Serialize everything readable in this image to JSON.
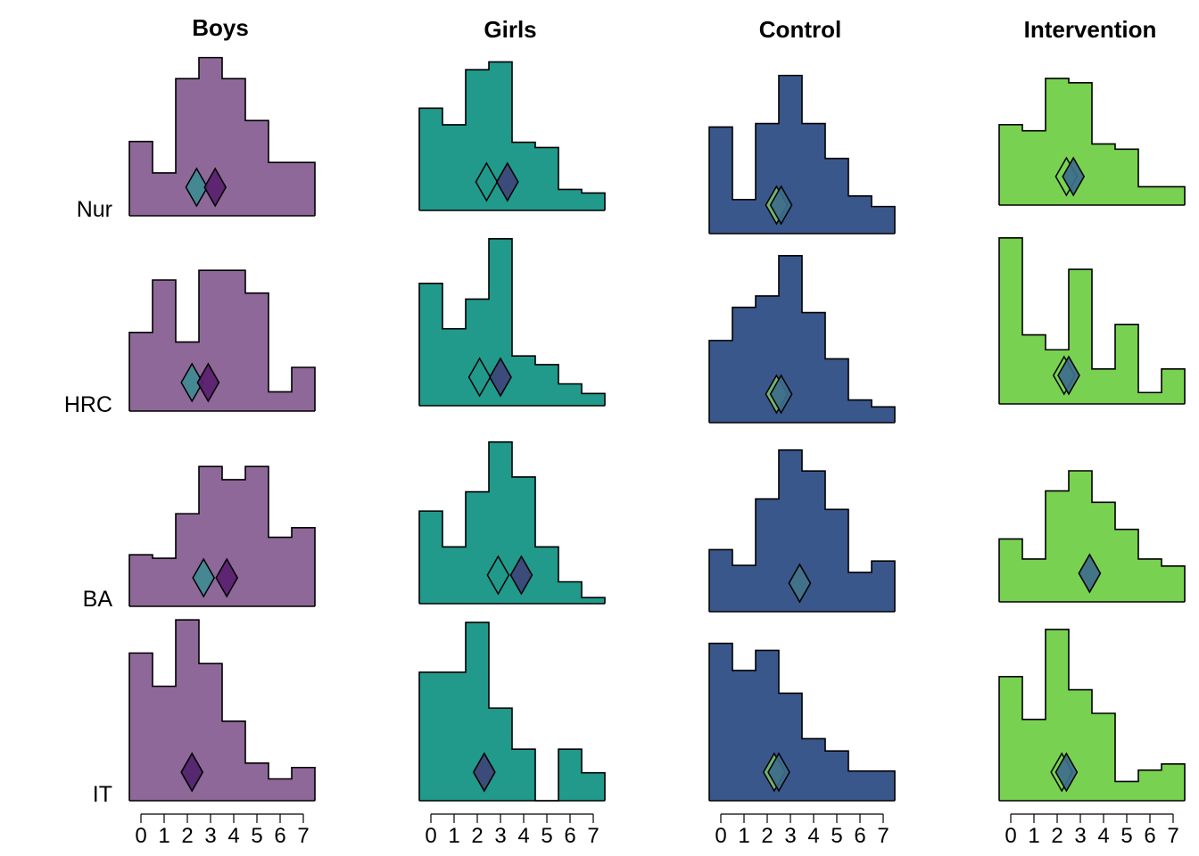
{
  "chart_data": {
    "type": "histogram-grid",
    "columns": [
      "Boys",
      "Girls",
      "Control",
      "Intervention"
    ],
    "rows": [
      "Nur",
      "HRC",
      "BA",
      "IT"
    ],
    "x_ticks": [
      "0",
      "1",
      "2",
      "3",
      "4",
      "5",
      "6",
      "7"
    ],
    "bins": [
      0,
      1,
      2,
      3,
      4,
      5,
      6,
      7
    ],
    "colors": {
      "Boys": "#8e6898",
      "Girls": "#21998b",
      "Control": "#3a578c",
      "Intervention": "#79d152"
    },
    "marker_colors": {
      "Boys": [
        "#3f8a92",
        "#59206f"
      ],
      "Girls": [
        "#21998b",
        "#3e4478"
      ],
      "Control": [
        "#76b86e",
        "#3d6c8c"
      ],
      "Intervention": [
        "#79d152",
        "#3d6c8c"
      ]
    },
    "panels": [
      {
        "column": "Boys",
        "row": "Nur",
        "density": [
          0.085,
          0.049,
          0.157,
          0.181,
          0.157,
          0.109,
          0.061,
          0.061
        ],
        "means": [
          2.9,
          3.7
        ]
      },
      {
        "column": "Boys",
        "row": "HRC",
        "density": [
          0.09,
          0.15,
          0.079,
          0.161,
          0.161,
          0.135,
          0.022,
          0.05
        ],
        "means": [
          2.7,
          3.4
        ]
      },
      {
        "column": "Boys",
        "row": "BA",
        "density": [
          0.059,
          0.055,
          0.106,
          0.16,
          0.145,
          0.16,
          0.079,
          0.09
        ],
        "means": [
          3.2,
          4.2
        ]
      },
      {
        "column": "Boys",
        "row": "IT",
        "density": [
          0.169,
          0.131,
          0.207,
          0.157,
          0.091,
          0.043,
          0.025,
          0.038
        ],
        "means": [
          2.7,
          2.7
        ]
      },
      {
        "column": "Girls",
        "row": "Nur",
        "density": [
          0.117,
          0.098,
          0.161,
          0.17,
          0.078,
          0.072,
          0.024,
          0.02
        ],
        "means": [
          2.9,
          3.8
        ]
      },
      {
        "column": "Girls",
        "row": "HRC",
        "density": [
          0.14,
          0.088,
          0.122,
          0.191,
          0.057,
          0.047,
          0.025,
          0.014
        ],
        "means": [
          2.6,
          3.5
        ]
      },
      {
        "column": "Girls",
        "row": "BA",
        "density": [
          0.106,
          0.065,
          0.128,
          0.185,
          0.145,
          0.065,
          0.025,
          0.007
        ],
        "means": [
          3.4,
          4.4
        ]
      },
      {
        "column": "Girls",
        "row": "IT",
        "density": [
          0.147,
          0.147,
          0.204,
          0.106,
          0.059,
          0.0,
          0.059,
          0.032
        ],
        "means": [
          2.8,
          2.8
        ]
      },
      {
        "column": "Control",
        "row": "Nur",
        "density": [
          0.122,
          0.039,
          0.126,
          0.181,
          0.126,
          0.086,
          0.043,
          0.031
        ],
        "means": [
          2.9,
          3.1
        ]
      },
      {
        "column": "Control",
        "row": "HRC",
        "density": [
          0.094,
          0.132,
          0.145,
          0.191,
          0.126,
          0.073,
          0.026,
          0.018
        ],
        "means": [
          2.9,
          3.1
        ]
      },
      {
        "column": "Control",
        "row": "BA",
        "density": [
          0.071,
          0.053,
          0.129,
          0.185,
          0.161,
          0.117,
          0.045,
          0.058
        ],
        "means": [
          3.9,
          3.9
        ]
      },
      {
        "column": "Control",
        "row": "IT",
        "density": [
          0.18,
          0.149,
          0.172,
          0.123,
          0.071,
          0.057,
          0.034,
          0.034
        ],
        "means": [
          2.8,
          3.0
        ]
      },
      {
        "column": "Intervention",
        "row": "Nur",
        "density": [
          0.092,
          0.085,
          0.145,
          0.14,
          0.07,
          0.064,
          0.021,
          0.021
        ],
        "means": [
          2.9,
          3.2
        ]
      },
      {
        "column": "Intervention",
        "row": "HRC",
        "density": [
          0.19,
          0.079,
          0.062,
          0.154,
          0.04,
          0.091,
          0.013,
          0.04
        ],
        "means": [
          2.8,
          3.0
        ]
      },
      {
        "column": "Intervention",
        "row": "BA",
        "density": [
          0.072,
          0.049,
          0.127,
          0.15,
          0.114,
          0.083,
          0.049,
          0.041
        ],
        "means": [
          3.9,
          3.9
        ]
      },
      {
        "column": "Intervention",
        "row": "IT",
        "density": [
          0.142,
          0.093,
          0.196,
          0.127,
          0.1,
          0.022,
          0.035,
          0.042
        ],
        "means": [
          2.7,
          2.9
        ]
      }
    ]
  }
}
